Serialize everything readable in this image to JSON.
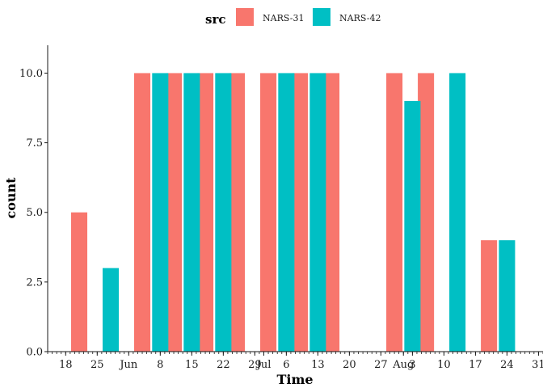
{
  "chart_data": {
    "type": "bar",
    "legend": {
      "title": "src",
      "position": "top",
      "entries": [
        {
          "name": "NARS-31",
          "color": "#F8766D"
        },
        {
          "name": "NARS-42",
          "color": "#00BFC4"
        }
      ]
    },
    "xlabel": "Time",
    "ylabel": "count",
    "ylim": [
      0,
      11
    ],
    "yticks": [
      "0.0",
      "2.5",
      "5.0",
      "7.5",
      "10.0"
    ],
    "xticks": [
      {
        "label": "18",
        "date": "2021-05-18"
      },
      {
        "label": "25",
        "date": "2021-05-25"
      },
      {
        "label": "Jun",
        "date": "2021-06-01"
      },
      {
        "label": "8",
        "date": "2021-06-08"
      },
      {
        "label": "15",
        "date": "2021-06-15"
      },
      {
        "label": "22",
        "date": "2021-06-22"
      },
      {
        "label": "29",
        "date": "2021-06-29"
      },
      {
        "label": "Jul",
        "date": "2021-07-01"
      },
      {
        "label": "6",
        "date": "2021-07-06"
      },
      {
        "label": "13",
        "date": "2021-07-13"
      },
      {
        "label": "20",
        "date": "2021-07-20"
      },
      {
        "label": "27",
        "date": "2021-07-27"
      },
      {
        "label": "Aug",
        "date": "2021-08-01"
      },
      {
        "label": "3",
        "date": "2021-08-03"
      },
      {
        "label": "10",
        "date": "2021-08-10"
      },
      {
        "label": "17",
        "date": "2021-08-17"
      },
      {
        "label": "24",
        "date": "2021-08-24"
      },
      {
        "label": "31",
        "date": "2021-08-31"
      }
    ],
    "xlim": [
      "2021-05-14",
      "2021-09-01"
    ],
    "grid": false,
    "series": [
      {
        "name": "NARS-31",
        "color": "#F8766D",
        "points": [
          {
            "date": "2021-05-21",
            "value": 5
          },
          {
            "date": "2021-06-04",
            "value": 10
          },
          {
            "date": "2021-06-11",
            "value": 10
          },
          {
            "date": "2021-06-18",
            "value": 10
          },
          {
            "date": "2021-06-25",
            "value": 10
          },
          {
            "date": "2021-07-02",
            "value": 10
          },
          {
            "date": "2021-07-09",
            "value": 10
          },
          {
            "date": "2021-07-16",
            "value": 10
          },
          {
            "date": "2021-07-30",
            "value": 10
          },
          {
            "date": "2021-08-06",
            "value": 10
          },
          {
            "date": "2021-08-20",
            "value": 4
          }
        ]
      },
      {
        "name": "NARS-42",
        "color": "#00BFC4",
        "points": [
          {
            "date": "2021-05-28",
            "value": 3
          },
          {
            "date": "2021-06-08",
            "value": 10
          },
          {
            "date": "2021-06-15",
            "value": 10
          },
          {
            "date": "2021-06-22",
            "value": 10
          },
          {
            "date": "2021-07-06",
            "value": 10
          },
          {
            "date": "2021-07-13",
            "value": 10
          },
          {
            "date": "2021-08-03",
            "value": 9
          },
          {
            "date": "2021-08-13",
            "value": 10
          },
          {
            "date": "2021-08-24",
            "value": 4
          }
        ]
      }
    ]
  }
}
